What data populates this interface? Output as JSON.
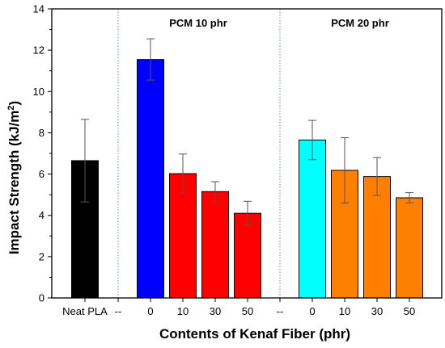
{
  "chart_data": {
    "type": "bar",
    "xlabel": "Contents of Kenaf Fiber (phr)",
    "ylabel_main": "Impact Strength (kJ/m",
    "ylabel_sup": "2",
    "ylabel_close": ")",
    "ylim": [
      0,
      14
    ],
    "yticks": [
      "0",
      "2",
      "4",
      "6",
      "8",
      "10",
      "12",
      "14"
    ],
    "grid": false,
    "groups": [
      {
        "label": "PCM 10 phr"
      },
      {
        "label": "PCM 20 phr"
      }
    ],
    "separator_label": "--",
    "bars": [
      {
        "category": "Neat PLA",
        "value": 6.65,
        "error": 2.0,
        "color": "#000000"
      },
      {
        "category": "0",
        "value": 11.55,
        "error": 1.0,
        "color": "#0000ff"
      },
      {
        "category": "10",
        "value": 6.02,
        "error": 0.95,
        "color": "#ff0000"
      },
      {
        "category": "30",
        "value": 5.15,
        "error": 0.48,
        "color": "#ff0000"
      },
      {
        "category": "50",
        "value": 4.1,
        "error": 0.58,
        "color": "#ff0000"
      },
      {
        "category": "0",
        "value": 7.65,
        "error": 0.95,
        "color": "#00ffff"
      },
      {
        "category": "10",
        "value": 6.18,
        "error": 1.58,
        "color": "#ff8000"
      },
      {
        "category": "30",
        "value": 5.88,
        "error": 0.92,
        "color": "#ff8000"
      },
      {
        "category": "50",
        "value": 4.85,
        "error": 0.25,
        "color": "#ff8000"
      }
    ]
  }
}
